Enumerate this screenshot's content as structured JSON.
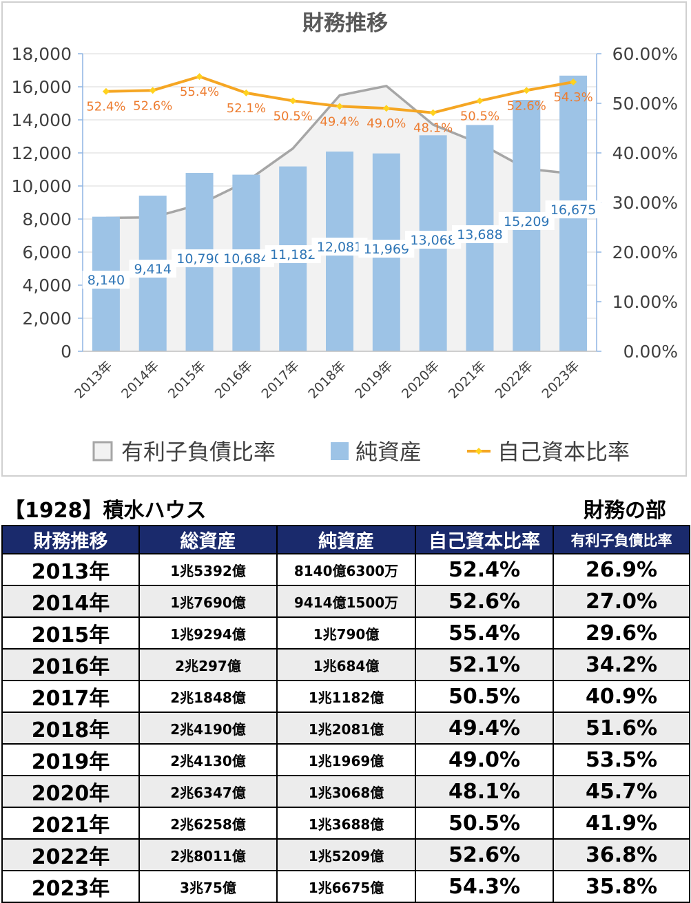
{
  "chart_data": {
    "type": "bar",
    "title": "財務推移",
    "categories": [
      "2013年",
      "2014年",
      "2015年",
      "2016年",
      "2017年",
      "2018年",
      "2019年",
      "2020年",
      "2021年",
      "2022年",
      "2023年"
    ],
    "y_left": {
      "ylim": [
        0,
        18000
      ],
      "ticks": [
        "0",
        "2,000",
        "4,000",
        "6,000",
        "8,000",
        "10,000",
        "12,000",
        "14,000",
        "16,000",
        "18,000"
      ]
    },
    "y_right": {
      "ylim": [
        0,
        60
      ],
      "ticks": [
        "0.00%",
        "10.00%",
        "20.00%",
        "30.00%",
        "40.00%",
        "50.00%",
        "60.00%"
      ]
    },
    "series": [
      {
        "name": "有利子負債比率",
        "kind": "area",
        "axis": "right",
        "color": "#a6a6a6",
        "values": [
          26.9,
          27.0,
          29.6,
          34.2,
          40.9,
          51.6,
          53.5,
          45.7,
          41.9,
          36.8,
          35.8
        ]
      },
      {
        "name": "純資産",
        "kind": "bar",
        "axis": "left",
        "color": "#9dc3e6",
        "values": [
          8140,
          9414,
          10790,
          10684,
          11182,
          12081,
          11969,
          13068,
          13688,
          15209,
          16675
        ],
        "labels": [
          "8,140",
          "9,414",
          "10,790",
          "10,684",
          "11,182",
          "12,081",
          "11,969",
          "13,068",
          "13,688",
          "15,209",
          "16,675"
        ]
      },
      {
        "name": "自己資本比率",
        "kind": "line",
        "axis": "right",
        "color": "#f5a623",
        "values": [
          52.4,
          52.6,
          55.4,
          52.1,
          50.5,
          49.4,
          49.0,
          48.1,
          50.5,
          52.6,
          54.3
        ],
        "labels": [
          "52.4%",
          "52.6%",
          "55.4%",
          "52.1%",
          "50.5%",
          "49.4%",
          "49.0%",
          "48.1%",
          "50.5%",
          "52.6%",
          "54.3%"
        ]
      }
    ],
    "legend_position": "bottom",
    "grid": true
  },
  "table": {
    "company": "【1928】積水ハウス",
    "section": "財務の部",
    "headers": [
      "財務推移",
      "総資産",
      "純資産",
      "自己資本比率",
      "有利子負債比率"
    ],
    "rows": [
      [
        "2013年",
        "1兆5392億",
        "8140億6300万",
        "52.4%",
        "26.9%"
      ],
      [
        "2014年",
        "1兆7690億",
        "9414億1500万",
        "52.6%",
        "27.0%"
      ],
      [
        "2015年",
        "1兆9294億",
        "1兆790億",
        "55.4%",
        "29.6%"
      ],
      [
        "2016年",
        "2兆297億",
        "1兆684億",
        "52.1%",
        "34.2%"
      ],
      [
        "2017年",
        "2兆1848億",
        "1兆1182億",
        "50.5%",
        "40.9%"
      ],
      [
        "2018年",
        "2兆4190億",
        "1兆2081億",
        "49.4%",
        "51.6%"
      ],
      [
        "2019年",
        "2兆4130億",
        "1兆1969億",
        "49.0%",
        "53.5%"
      ],
      [
        "2020年",
        "2兆6347億",
        "1兆3068億",
        "48.1%",
        "45.7%"
      ],
      [
        "2021年",
        "2兆6258億",
        "1兆3688億",
        "50.5%",
        "41.9%"
      ],
      [
        "2022年",
        "2兆8011億",
        "1兆5209億",
        "52.6%",
        "36.8%"
      ],
      [
        "2023年",
        "3兆75億",
        "1兆6675億",
        "54.3%",
        "35.8%"
      ]
    ]
  }
}
